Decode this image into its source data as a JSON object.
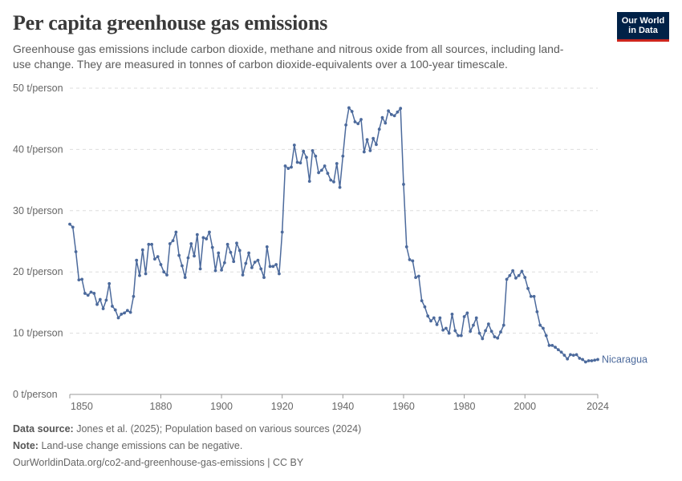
{
  "header": {
    "title": "Per capita greenhouse gas emissions",
    "subtitle": "Greenhouse gas emissions include carbon dioxide, methane and nitrous oxide from all sources, including land-use change. They are measured in tonnes of carbon dioxide-equivalents over a 100-year timescale.",
    "logo_line1": "Our World",
    "logo_line2": "in Data"
  },
  "footer": {
    "source_label": "Data source:",
    "source_text": "Jones et al. (2025); Population based on various sources (2024)",
    "note_label": "Note:",
    "note_text": "Land-use change emissions can be negative.",
    "url_text": "OurWorldinData.org/co2-and-greenhouse-gas-emissions | CC BY"
  },
  "colors": {
    "series": "#4c6a9c",
    "grid": "#dddddd",
    "axis": "#666666"
  },
  "chart_data": {
    "type": "line",
    "title": "Per capita greenhouse gas emissions",
    "xlabel": "",
    "ylabel": "",
    "ylim": [
      0,
      50
    ],
    "xlim": [
      1850,
      2024
    ],
    "y_ticks": [
      0,
      10,
      20,
      30,
      40,
      50
    ],
    "y_tick_labels": [
      "0 t/person",
      "10 t/person",
      "20 t/person",
      "30 t/person",
      "40 t/person",
      "50 t/person"
    ],
    "x_ticks": [
      1850,
      1880,
      1900,
      1920,
      1940,
      1960,
      1980,
      2000,
      2024
    ],
    "x_tick_labels": [
      "1850",
      "1880",
      "1900",
      "1920",
      "1940",
      "1960",
      "1980",
      "2000",
      "2024"
    ],
    "grid": true,
    "series": [
      {
        "name": "Nicaragua",
        "x": [
          1850,
          1851,
          1852,
          1853,
          1854,
          1855,
          1856,
          1857,
          1858,
          1859,
          1860,
          1861,
          1862,
          1863,
          1864,
          1865,
          1866,
          1867,
          1868,
          1869,
          1870,
          1871,
          1872,
          1873,
          1874,
          1875,
          1876,
          1877,
          1878,
          1879,
          1880,
          1881,
          1882,
          1883,
          1884,
          1885,
          1886,
          1887,
          1888,
          1889,
          1890,
          1891,
          1892,
          1893,
          1894,
          1895,
          1896,
          1897,
          1898,
          1899,
          1900,
          1901,
          1902,
          1903,
          1904,
          1905,
          1906,
          1907,
          1908,
          1909,
          1910,
          1911,
          1912,
          1913,
          1914,
          1915,
          1916,
          1917,
          1918,
          1919,
          1920,
          1921,
          1922,
          1923,
          1924,
          1925,
          1926,
          1927,
          1928,
          1929,
          1930,
          1931,
          1932,
          1933,
          1934,
          1935,
          1936,
          1937,
          1938,
          1939,
          1940,
          1941,
          1942,
          1943,
          1944,
          1945,
          1946,
          1947,
          1948,
          1949,
          1950,
          1951,
          1952,
          1953,
          1954,
          1955,
          1956,
          1957,
          1958,
          1959,
          1960,
          1961,
          1962,
          1963,
          1964,
          1965,
          1966,
          1967,
          1968,
          1969,
          1970,
          1971,
          1972,
          1973,
          1974,
          1975,
          1976,
          1977,
          1978,
          1979,
          1980,
          1981,
          1982,
          1983,
          1984,
          1985,
          1986,
          1987,
          1988,
          1989,
          1990,
          1991,
          1992,
          1993,
          1994,
          1995,
          1996,
          1997,
          1998,
          1999,
          2000,
          2001,
          2002,
          2003,
          2004,
          2005,
          2006,
          2007,
          2008,
          2009,
          2010,
          2011,
          2012,
          2013,
          2014,
          2015,
          2016,
          2017,
          2018,
          2019,
          2020,
          2021,
          2022,
          2023,
          2024
        ],
        "values": [
          27.8,
          27.3,
          23.3,
          18.7,
          18.8,
          16.5,
          16.2,
          16.7,
          16.5,
          14.7,
          15.5,
          14.0,
          15.4,
          18.1,
          14.4,
          13.8,
          12.5,
          13.1,
          13.3,
          13.7,
          13.4,
          16.0,
          21.9,
          19.4,
          23.6,
          19.7,
          24.5,
          24.5,
          22.1,
          22.5,
          21.2,
          20.0,
          19.5,
          24.6,
          25.1,
          26.5,
          22.7,
          21.0,
          19.1,
          22.3,
          24.6,
          22.6,
          26.1,
          20.5,
          25.6,
          25.4,
          26.5,
          24.0,
          20.2,
          23.1,
          20.3,
          21.5,
          24.5,
          23.2,
          21.7,
          24.7,
          23.5,
          19.5,
          21.4,
          23.1,
          20.7,
          21.6,
          21.9,
          20.5,
          19.1,
          24.1,
          20.9,
          20.9,
          21.2,
          19.7,
          26.5,
          37.3,
          36.9,
          37.1,
          40.7,
          37.9,
          37.8,
          39.7,
          38.7,
          34.8,
          39.8,
          38.9,
          36.2,
          36.6,
          37.3,
          36.1,
          35.0,
          34.7,
          37.7,
          33.8,
          38.9,
          44.0,
          46.8,
          46.2,
          44.5,
          44.2,
          44.9,
          39.6,
          41.6,
          39.8,
          41.8,
          40.8,
          43.3,
          45.2,
          44.3,
          46.3,
          45.7,
          45.5,
          46.1,
          46.7,
          34.3,
          24.1,
          22.0,
          21.8,
          19.1,
          19.3,
          15.3,
          14.3,
          12.8,
          12.0,
          12.5,
          11.4,
          12.5,
          10.5,
          10.8,
          10.0,
          13.1,
          10.4,
          9.6,
          9.6,
          12.7,
          13.3,
          10.3,
          11.3,
          12.5,
          10.0,
          9.1,
          10.4,
          11.5,
          10.3,
          9.4,
          9.2,
          10.2,
          11.3,
          18.8,
          19.4,
          20.2,
          19.0,
          19.4,
          20.1,
          19.1,
          17.3,
          16.0,
          16.0,
          13.5,
          11.3,
          10.8,
          9.6,
          8.0,
          8.0,
          7.7,
          7.3,
          6.9,
          6.4,
          5.8,
          6.5,
          6.4,
          6.5,
          5.9,
          5.7,
          5.3,
          5.5,
          5.5,
          5.6,
          5.7
        ]
      }
    ]
  }
}
